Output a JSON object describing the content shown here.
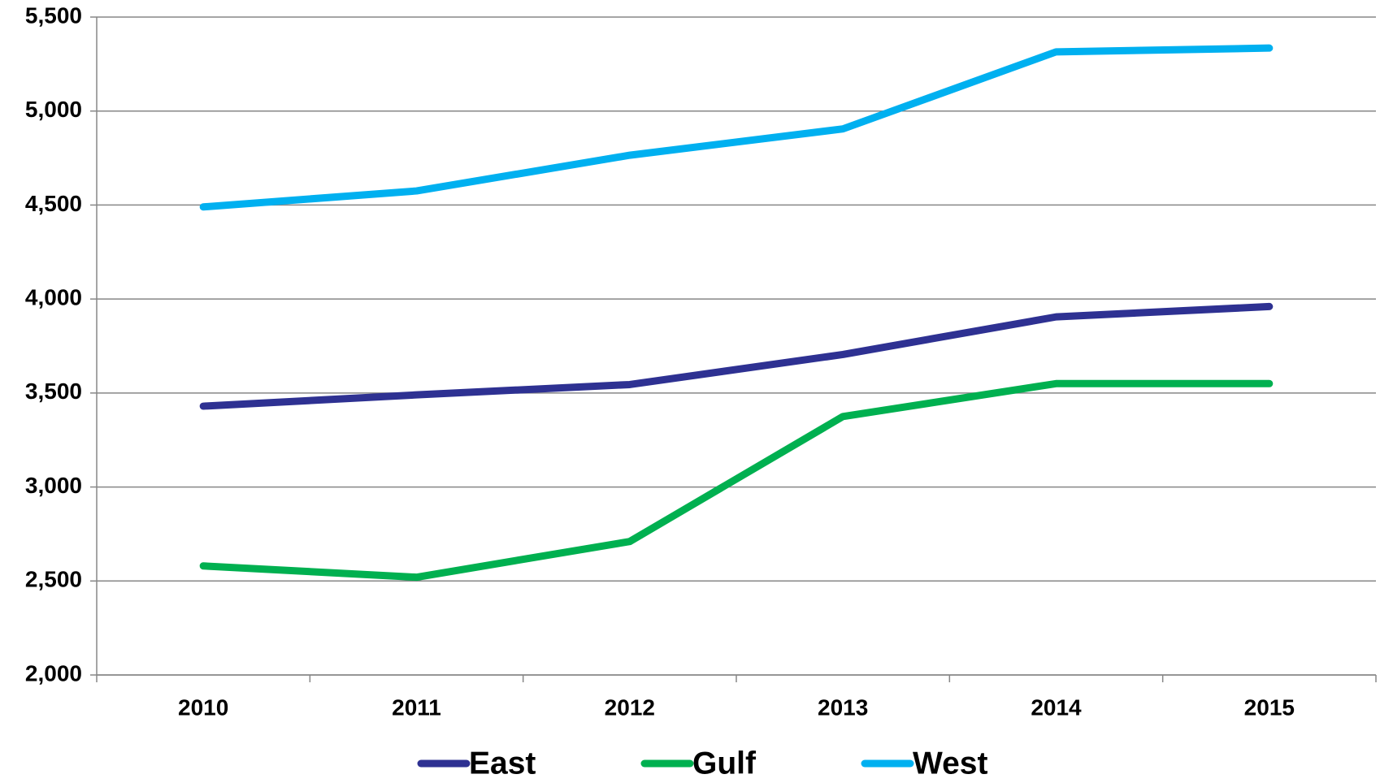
{
  "chart_data": {
    "type": "line",
    "categories": [
      "2010",
      "2011",
      "2012",
      "2013",
      "2014",
      "2015"
    ],
    "series": [
      {
        "name": "East",
        "color": "#2e3192",
        "values": [
          3430,
          3490,
          3545,
          3705,
          3905,
          3960
        ]
      },
      {
        "name": "Gulf",
        "color": "#00b050",
        "values": [
          2580,
          2520,
          2710,
          3375,
          3550,
          3550
        ]
      },
      {
        "name": "West",
        "color": "#00b0f0",
        "values": [
          4490,
          4575,
          4765,
          4905,
          5315,
          5335
        ]
      }
    ],
    "ylim": [
      2000,
      5500
    ],
    "yticks": [
      {
        "value": 2000,
        "label": "2,000"
      },
      {
        "value": 2500,
        "label": "2,500"
      },
      {
        "value": 3000,
        "label": "3,000"
      },
      {
        "value": 3500,
        "label": "3,500"
      },
      {
        "value": 4000,
        "label": "4,000"
      },
      {
        "value": 4500,
        "label": "4,500"
      },
      {
        "value": 5000,
        "label": "5,000"
      },
      {
        "value": 5500,
        "label": "5,500"
      }
    ],
    "grid": true,
    "legend": "bottom"
  }
}
